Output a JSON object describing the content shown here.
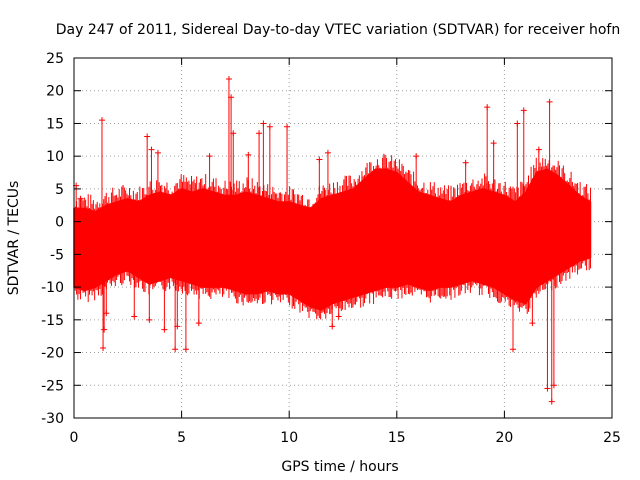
{
  "chart_data": {
    "type": "scatter",
    "title": "Day 247 of 2011, Sidereal Day-to-day VTEC variation (SDTVAR) for receiver hofn",
    "xlabel": "GPS time / hours",
    "ylabel": "SDTVAR / TECUs",
    "xlim": [
      0,
      25
    ],
    "ylim": [
      -30,
      25
    ],
    "xticks": [
      0,
      5,
      10,
      15,
      20,
      25
    ],
    "yticks": [
      -30,
      -25,
      -20,
      -15,
      -10,
      -5,
      0,
      5,
      10,
      15,
      20,
      25
    ],
    "grid": true,
    "marker": "+",
    "series_color": "#ff0000",
    "series": [
      {
        "name": "SDTVAR",
        "band_x": [
          0,
          0.5,
          1,
          1.5,
          2,
          2.5,
          3,
          3.5,
          4,
          4.5,
          5,
          5.5,
          6,
          6.5,
          7,
          7.5,
          8,
          8.5,
          9,
          9.5,
          10,
          10.5,
          11,
          11.5,
          12,
          12.5,
          13,
          13.5,
          14,
          14.5,
          15,
          15.5,
          16,
          16.5,
          17,
          17.5,
          18,
          18.5,
          19,
          19.5,
          20,
          20.5,
          21,
          21.5,
          22,
          22.5,
          23,
          23.5,
          24
        ],
        "band_upper": [
          2,
          2,
          1.5,
          2.5,
          3,
          3.5,
          3,
          4,
          4.5,
          4,
          5,
          4.5,
          5,
          4.5,
          4,
          4,
          4.5,
          4,
          3.5,
          3,
          3,
          2.5,
          2,
          3.5,
          4,
          4.5,
          5,
          6.5,
          8,
          8,
          7.5,
          6,
          4.5,
          4,
          3.5,
          3,
          4,
          4.5,
          5,
          4.5,
          4,
          3,
          4.5,
          7.5,
          8,
          7,
          5.5,
          4,
          3
        ],
        "band_lower": [
          -10,
          -10.5,
          -10,
          -9,
          -8,
          -7.5,
          -8.5,
          -9.5,
          -9,
          -8.5,
          -9,
          -9.5,
          -10,
          -10,
          -10,
          -10.5,
          -11,
          -11,
          -10.5,
          -11,
          -11,
          -12,
          -13,
          -13.5,
          -12.5,
          -12,
          -11.5,
          -11,
          -10.5,
          -10,
          -10,
          -9.5,
          -10,
          -10.5,
          -10,
          -10,
          -9.5,
          -9,
          -9.5,
          -10,
          -11,
          -12,
          -12.5,
          -10,
          -9,
          -8,
          -7,
          -6,
          -5.5
        ],
        "x": [
          0.1,
          0.3,
          1.3,
          1.35,
          1.4,
          1.5,
          2.8,
          3.4,
          3.5,
          3.6,
          3.9,
          4.2,
          4.7,
          4.8,
          5.2,
          5.8,
          6.3,
          7.2,
          7.3,
          7.4,
          8.1,
          8.6,
          8.8,
          9.1,
          9.9,
          11.4,
          11.8,
          12.0,
          12.3,
          15.9,
          18.2,
          19.2,
          19.5,
          20.4,
          20.6,
          20.9,
          21.3,
          21.6,
          22.0,
          22.1,
          22.2,
          22.3
        ],
        "y": [
          5.5,
          3.5,
          15.5,
          -19.3,
          -16.5,
          -14,
          -14.5,
          13,
          -15,
          11,
          10.5,
          -16.5,
          -19.5,
          -16,
          -19.5,
          -15.5,
          10,
          21.8,
          19,
          13.5,
          10.2,
          13.5,
          15,
          14.5,
          14.5,
          9.5,
          10.5,
          -16,
          -14.5,
          10,
          9,
          17.5,
          12,
          -19.5,
          15,
          17,
          -15.5,
          11,
          -25.5,
          18.3,
          -27.5,
          -25
        ]
      }
    ]
  }
}
